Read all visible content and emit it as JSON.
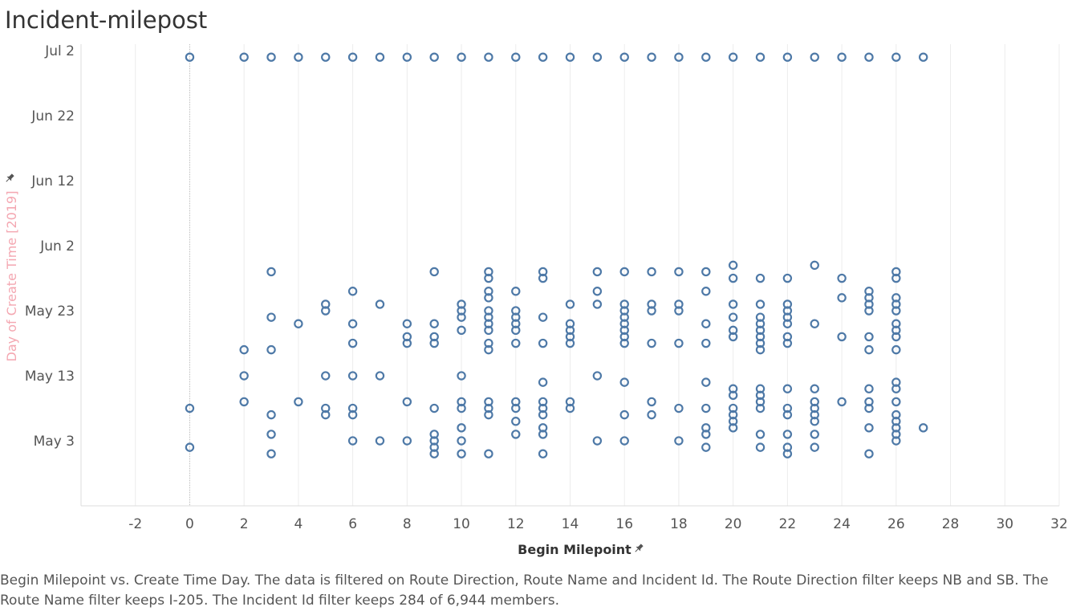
{
  "title": "Incident-milepost",
  "caption": "Begin Milepoint vs. Create Time Day. The data is filtered on Route Direction, Route Name and Incident Id. The Route Direction filter keeps NB and SB. The Route Name filter keeps I-205. The Incident Id filter keeps 284 of 6,944 members.",
  "colors": {
    "marks": "#4e79a7",
    "ylabel": "#f4a7b1",
    "pin": "#555555"
  },
  "chart_data": {
    "type": "scatter",
    "title": "Incident-milepost",
    "xlabel": "Begin Milepoint",
    "ylabel": "Day of Create Time [2019]",
    "xlim": [
      -4,
      32
    ],
    "ylim": [
      "2019-04-23",
      "2019-07-03"
    ],
    "x_ticks": [
      -2,
      0,
      2,
      4,
      6,
      8,
      10,
      12,
      14,
      16,
      18,
      20,
      22,
      24,
      26,
      28,
      30,
      32
    ],
    "y_ticks": [
      {
        "label": "Jul 2",
        "date": "2019-07-02"
      },
      {
        "label": "Jun 22",
        "date": "2019-06-22"
      },
      {
        "label": "Jun 12",
        "date": "2019-06-12"
      },
      {
        "label": "Jun 2",
        "date": "2019-06-02"
      },
      {
        "label": "May 23",
        "date": "2019-05-23"
      },
      {
        "label": "May 13",
        "date": "2019-05-13"
      },
      {
        "label": "May 3",
        "date": "2019-05-03"
      }
    ],
    "grid": true,
    "points": [
      {
        "x": 0,
        "y": "2019-07-01"
      },
      {
        "x": 2,
        "y": "2019-07-01"
      },
      {
        "x": 3,
        "y": "2019-07-01"
      },
      {
        "x": 4,
        "y": "2019-07-01"
      },
      {
        "x": 5,
        "y": "2019-07-01"
      },
      {
        "x": 6,
        "y": "2019-07-01"
      },
      {
        "x": 7,
        "y": "2019-07-01"
      },
      {
        "x": 8,
        "y": "2019-07-01"
      },
      {
        "x": 9,
        "y": "2019-07-01"
      },
      {
        "x": 10,
        "y": "2019-07-01"
      },
      {
        "x": 11,
        "y": "2019-07-01"
      },
      {
        "x": 12,
        "y": "2019-07-01"
      },
      {
        "x": 13,
        "y": "2019-07-01"
      },
      {
        "x": 14,
        "y": "2019-07-01"
      },
      {
        "x": 15,
        "y": "2019-07-01"
      },
      {
        "x": 16,
        "y": "2019-07-01"
      },
      {
        "x": 17,
        "y": "2019-07-01"
      },
      {
        "x": 18,
        "y": "2019-07-01"
      },
      {
        "x": 19,
        "y": "2019-07-01"
      },
      {
        "x": 20,
        "y": "2019-07-01"
      },
      {
        "x": 21,
        "y": "2019-07-01"
      },
      {
        "x": 22,
        "y": "2019-07-01"
      },
      {
        "x": 23,
        "y": "2019-07-01"
      },
      {
        "x": 24,
        "y": "2019-07-01"
      },
      {
        "x": 25,
        "y": "2019-07-01"
      },
      {
        "x": 26,
        "y": "2019-07-01"
      },
      {
        "x": 27,
        "y": "2019-07-01"
      },
      {
        "x": 0,
        "y": "2019-05-08"
      },
      {
        "x": 0,
        "y": "2019-05-02"
      },
      {
        "x": 2,
        "y": "2019-05-17"
      },
      {
        "x": 2,
        "y": "2019-05-13"
      },
      {
        "x": 2,
        "y": "2019-05-09"
      },
      {
        "x": 3,
        "y": "2019-05-29"
      },
      {
        "x": 3,
        "y": "2019-05-22"
      },
      {
        "x": 3,
        "y": "2019-05-17"
      },
      {
        "x": 3,
        "y": "2019-05-07"
      },
      {
        "x": 3,
        "y": "2019-05-04"
      },
      {
        "x": 3,
        "y": "2019-05-01"
      },
      {
        "x": 4,
        "y": "2019-05-21"
      },
      {
        "x": 4,
        "y": "2019-05-09"
      },
      {
        "x": 5,
        "y": "2019-05-24"
      },
      {
        "x": 5,
        "y": "2019-05-23"
      },
      {
        "x": 5,
        "y": "2019-05-13"
      },
      {
        "x": 5,
        "y": "2019-05-08"
      },
      {
        "x": 5,
        "y": "2019-05-07"
      },
      {
        "x": 6,
        "y": "2019-05-26"
      },
      {
        "x": 6,
        "y": "2019-05-21"
      },
      {
        "x": 6,
        "y": "2019-05-18"
      },
      {
        "x": 6,
        "y": "2019-05-13"
      },
      {
        "x": 6,
        "y": "2019-05-08"
      },
      {
        "x": 6,
        "y": "2019-05-07"
      },
      {
        "x": 6,
        "y": "2019-05-03"
      },
      {
        "x": 7,
        "y": "2019-05-24"
      },
      {
        "x": 7,
        "y": "2019-05-13"
      },
      {
        "x": 7,
        "y": "2019-05-03"
      },
      {
        "x": 8,
        "y": "2019-05-21"
      },
      {
        "x": 8,
        "y": "2019-05-19"
      },
      {
        "x": 8,
        "y": "2019-05-18"
      },
      {
        "x": 8,
        "y": "2019-05-09"
      },
      {
        "x": 8,
        "y": "2019-05-03"
      },
      {
        "x": 9,
        "y": "2019-05-29"
      },
      {
        "x": 9,
        "y": "2019-05-21"
      },
      {
        "x": 9,
        "y": "2019-05-19"
      },
      {
        "x": 9,
        "y": "2019-05-18"
      },
      {
        "x": 9,
        "y": "2019-05-08"
      },
      {
        "x": 9,
        "y": "2019-05-04"
      },
      {
        "x": 9,
        "y": "2019-05-03"
      },
      {
        "x": 9,
        "y": "2019-05-02"
      },
      {
        "x": 9,
        "y": "2019-05-01"
      },
      {
        "x": 10,
        "y": "2019-05-24"
      },
      {
        "x": 10,
        "y": "2019-05-23"
      },
      {
        "x": 10,
        "y": "2019-05-22"
      },
      {
        "x": 10,
        "y": "2019-05-20"
      },
      {
        "x": 10,
        "y": "2019-05-13"
      },
      {
        "x": 10,
        "y": "2019-05-09"
      },
      {
        "x": 10,
        "y": "2019-05-08"
      },
      {
        "x": 10,
        "y": "2019-05-05"
      },
      {
        "x": 10,
        "y": "2019-05-03"
      },
      {
        "x": 10,
        "y": "2019-05-01"
      },
      {
        "x": 11,
        "y": "2019-05-29"
      },
      {
        "x": 11,
        "y": "2019-05-28"
      },
      {
        "x": 11,
        "y": "2019-05-26"
      },
      {
        "x": 11,
        "y": "2019-05-25"
      },
      {
        "x": 11,
        "y": "2019-05-23"
      },
      {
        "x": 11,
        "y": "2019-05-22"
      },
      {
        "x": 11,
        "y": "2019-05-21"
      },
      {
        "x": 11,
        "y": "2019-05-20"
      },
      {
        "x": 11,
        "y": "2019-05-18"
      },
      {
        "x": 11,
        "y": "2019-05-17"
      },
      {
        "x": 11,
        "y": "2019-05-09"
      },
      {
        "x": 11,
        "y": "2019-05-08"
      },
      {
        "x": 11,
        "y": "2019-05-07"
      },
      {
        "x": 11,
        "y": "2019-05-01"
      },
      {
        "x": 12,
        "y": "2019-05-26"
      },
      {
        "x": 12,
        "y": "2019-05-23"
      },
      {
        "x": 12,
        "y": "2019-05-22"
      },
      {
        "x": 12,
        "y": "2019-05-21"
      },
      {
        "x": 12,
        "y": "2019-05-20"
      },
      {
        "x": 12,
        "y": "2019-05-18"
      },
      {
        "x": 12,
        "y": "2019-05-09"
      },
      {
        "x": 12,
        "y": "2019-05-08"
      },
      {
        "x": 12,
        "y": "2019-05-06"
      },
      {
        "x": 12,
        "y": "2019-05-04"
      },
      {
        "x": 13,
        "y": "2019-05-29"
      },
      {
        "x": 13,
        "y": "2019-05-28"
      },
      {
        "x": 13,
        "y": "2019-05-22"
      },
      {
        "x": 13,
        "y": "2019-05-18"
      },
      {
        "x": 13,
        "y": "2019-05-12"
      },
      {
        "x": 13,
        "y": "2019-05-09"
      },
      {
        "x": 13,
        "y": "2019-05-08"
      },
      {
        "x": 13,
        "y": "2019-05-07"
      },
      {
        "x": 13,
        "y": "2019-05-05"
      },
      {
        "x": 13,
        "y": "2019-05-04"
      },
      {
        "x": 13,
        "y": "2019-05-01"
      },
      {
        "x": 14,
        "y": "2019-05-24"
      },
      {
        "x": 14,
        "y": "2019-05-21"
      },
      {
        "x": 14,
        "y": "2019-05-20"
      },
      {
        "x": 14,
        "y": "2019-05-19"
      },
      {
        "x": 14,
        "y": "2019-05-18"
      },
      {
        "x": 14,
        "y": "2019-05-09"
      },
      {
        "x": 14,
        "y": "2019-05-08"
      },
      {
        "x": 15,
        "y": "2019-05-29"
      },
      {
        "x": 15,
        "y": "2019-05-26"
      },
      {
        "x": 15,
        "y": "2019-05-24"
      },
      {
        "x": 15,
        "y": "2019-05-13"
      },
      {
        "x": 15,
        "y": "2019-05-03"
      },
      {
        "x": 16,
        "y": "2019-05-29"
      },
      {
        "x": 16,
        "y": "2019-05-24"
      },
      {
        "x": 16,
        "y": "2019-05-23"
      },
      {
        "x": 16,
        "y": "2019-05-22"
      },
      {
        "x": 16,
        "y": "2019-05-21"
      },
      {
        "x": 16,
        "y": "2019-05-20"
      },
      {
        "x": 16,
        "y": "2019-05-19"
      },
      {
        "x": 16,
        "y": "2019-05-18"
      },
      {
        "x": 16,
        "y": "2019-05-12"
      },
      {
        "x": 16,
        "y": "2019-05-07"
      },
      {
        "x": 16,
        "y": "2019-05-03"
      },
      {
        "x": 17,
        "y": "2019-05-29"
      },
      {
        "x": 17,
        "y": "2019-05-24"
      },
      {
        "x": 17,
        "y": "2019-05-23"
      },
      {
        "x": 17,
        "y": "2019-05-18"
      },
      {
        "x": 17,
        "y": "2019-05-09"
      },
      {
        "x": 17,
        "y": "2019-05-07"
      },
      {
        "x": 18,
        "y": "2019-05-29"
      },
      {
        "x": 18,
        "y": "2019-05-24"
      },
      {
        "x": 18,
        "y": "2019-05-23"
      },
      {
        "x": 18,
        "y": "2019-05-18"
      },
      {
        "x": 18,
        "y": "2019-05-08"
      },
      {
        "x": 18,
        "y": "2019-05-03"
      },
      {
        "x": 19,
        "y": "2019-05-29"
      },
      {
        "x": 19,
        "y": "2019-05-26"
      },
      {
        "x": 19,
        "y": "2019-05-21"
      },
      {
        "x": 19,
        "y": "2019-05-18"
      },
      {
        "x": 19,
        "y": "2019-05-12"
      },
      {
        "x": 19,
        "y": "2019-05-08"
      },
      {
        "x": 19,
        "y": "2019-05-05"
      },
      {
        "x": 19,
        "y": "2019-05-04"
      },
      {
        "x": 19,
        "y": "2019-05-02"
      },
      {
        "x": 20,
        "y": "2019-05-30"
      },
      {
        "x": 20,
        "y": "2019-05-28"
      },
      {
        "x": 20,
        "y": "2019-05-24"
      },
      {
        "x": 20,
        "y": "2019-05-22"
      },
      {
        "x": 20,
        "y": "2019-05-20"
      },
      {
        "x": 20,
        "y": "2019-05-19"
      },
      {
        "x": 20,
        "y": "2019-05-11"
      },
      {
        "x": 20,
        "y": "2019-05-10"
      },
      {
        "x": 20,
        "y": "2019-05-08"
      },
      {
        "x": 20,
        "y": "2019-05-07"
      },
      {
        "x": 20,
        "y": "2019-05-06"
      },
      {
        "x": 20,
        "y": "2019-05-05"
      },
      {
        "x": 21,
        "y": "2019-05-28"
      },
      {
        "x": 21,
        "y": "2019-05-24"
      },
      {
        "x": 21,
        "y": "2019-05-22"
      },
      {
        "x": 21,
        "y": "2019-05-21"
      },
      {
        "x": 21,
        "y": "2019-05-20"
      },
      {
        "x": 21,
        "y": "2019-05-19"
      },
      {
        "x": 21,
        "y": "2019-05-18"
      },
      {
        "x": 21,
        "y": "2019-05-17"
      },
      {
        "x": 21,
        "y": "2019-05-11"
      },
      {
        "x": 21,
        "y": "2019-05-10"
      },
      {
        "x": 21,
        "y": "2019-05-09"
      },
      {
        "x": 21,
        "y": "2019-05-08"
      },
      {
        "x": 21,
        "y": "2019-05-04"
      },
      {
        "x": 21,
        "y": "2019-05-02"
      },
      {
        "x": 22,
        "y": "2019-05-28"
      },
      {
        "x": 22,
        "y": "2019-05-24"
      },
      {
        "x": 22,
        "y": "2019-05-23"
      },
      {
        "x": 22,
        "y": "2019-05-22"
      },
      {
        "x": 22,
        "y": "2019-05-21"
      },
      {
        "x": 22,
        "y": "2019-05-19"
      },
      {
        "x": 22,
        "y": "2019-05-18"
      },
      {
        "x": 22,
        "y": "2019-05-11"
      },
      {
        "x": 22,
        "y": "2019-05-08"
      },
      {
        "x": 22,
        "y": "2019-05-07"
      },
      {
        "x": 22,
        "y": "2019-05-04"
      },
      {
        "x": 22,
        "y": "2019-05-02"
      },
      {
        "x": 22,
        "y": "2019-05-01"
      },
      {
        "x": 23,
        "y": "2019-05-30"
      },
      {
        "x": 23,
        "y": "2019-05-21"
      },
      {
        "x": 23,
        "y": "2019-05-11"
      },
      {
        "x": 23,
        "y": "2019-05-09"
      },
      {
        "x": 23,
        "y": "2019-05-08"
      },
      {
        "x": 23,
        "y": "2019-05-07"
      },
      {
        "x": 23,
        "y": "2019-05-06"
      },
      {
        "x": 23,
        "y": "2019-05-04"
      },
      {
        "x": 23,
        "y": "2019-05-02"
      },
      {
        "x": 24,
        "y": "2019-05-28"
      },
      {
        "x": 24,
        "y": "2019-05-25"
      },
      {
        "x": 24,
        "y": "2019-05-19"
      },
      {
        "x": 24,
        "y": "2019-05-09"
      },
      {
        "x": 25,
        "y": "2019-05-26"
      },
      {
        "x": 25,
        "y": "2019-05-25"
      },
      {
        "x": 25,
        "y": "2019-05-24"
      },
      {
        "x": 25,
        "y": "2019-05-23"
      },
      {
        "x": 25,
        "y": "2019-05-19"
      },
      {
        "x": 25,
        "y": "2019-05-17"
      },
      {
        "x": 25,
        "y": "2019-05-11"
      },
      {
        "x": 25,
        "y": "2019-05-09"
      },
      {
        "x": 25,
        "y": "2019-05-08"
      },
      {
        "x": 25,
        "y": "2019-05-05"
      },
      {
        "x": 25,
        "y": "2019-05-01"
      },
      {
        "x": 26,
        "y": "2019-05-29"
      },
      {
        "x": 26,
        "y": "2019-05-28"
      },
      {
        "x": 26,
        "y": "2019-05-25"
      },
      {
        "x": 26,
        "y": "2019-05-24"
      },
      {
        "x": 26,
        "y": "2019-05-23"
      },
      {
        "x": 26,
        "y": "2019-05-21"
      },
      {
        "x": 26,
        "y": "2019-05-20"
      },
      {
        "x": 26,
        "y": "2019-05-19"
      },
      {
        "x": 26,
        "y": "2019-05-17"
      },
      {
        "x": 26,
        "y": "2019-05-12"
      },
      {
        "x": 26,
        "y": "2019-05-11"
      },
      {
        "x": 26,
        "y": "2019-05-09"
      },
      {
        "x": 26,
        "y": "2019-05-07"
      },
      {
        "x": 26,
        "y": "2019-05-06"
      },
      {
        "x": 26,
        "y": "2019-05-05"
      },
      {
        "x": 26,
        "y": "2019-05-04"
      },
      {
        "x": 26,
        "y": "2019-05-03"
      },
      {
        "x": 27,
        "y": "2019-05-05"
      }
    ]
  }
}
